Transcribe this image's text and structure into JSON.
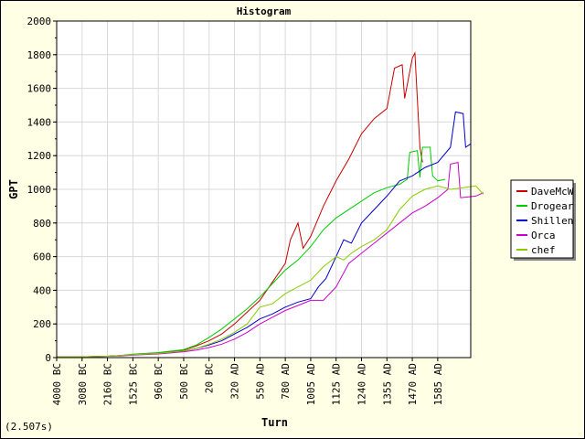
{
  "chart_data": {
    "type": "line",
    "title": "Histogram",
    "xlabel": "Turn",
    "ylabel": "GPT",
    "ylim": [
      0,
      2000
    ],
    "yticks": [
      "0",
      "200",
      "400",
      "600",
      "800",
      "1000",
      "1200",
      "1400",
      "1600",
      "1800",
      "2000"
    ],
    "xticks": [
      "4000 BC",
      "3080 BC",
      "2160 BC",
      "1525 BC",
      "960 BC",
      "500 BC",
      "20 BC",
      "320 AD",
      "550 AD",
      "780 AD",
      "1005 AD",
      "1125 AD",
      "1240 AD",
      "1355 AD",
      "1470 AD",
      "1585 AD"
    ],
    "grid": true,
    "legend_position": "right",
    "series": [
      {
        "name": "DaveMcW",
        "color": "#cc0000",
        "points": [
          [
            0,
            5
          ],
          [
            1,
            5
          ],
          [
            2,
            8
          ],
          [
            2.5,
            12
          ],
          [
            3,
            18
          ],
          [
            4,
            28
          ],
          [
            5,
            45
          ],
          [
            5.5,
            70
          ],
          [
            6,
            100
          ],
          [
            6.5,
            140
          ],
          [
            7,
            200
          ],
          [
            7.5,
            270
          ],
          [
            8,
            340
          ],
          [
            8.5,
            450
          ],
          [
            9,
            560
          ],
          [
            9.2,
            700
          ],
          [
            9.5,
            800
          ],
          [
            9.7,
            650
          ],
          [
            10,
            720
          ],
          [
            10.5,
            900
          ],
          [
            11,
            1050
          ],
          [
            11.5,
            1180
          ],
          [
            12,
            1330
          ],
          [
            12.5,
            1420
          ],
          [
            13,
            1480
          ],
          [
            13.3,
            1720
          ],
          [
            13.6,
            1740
          ],
          [
            13.7,
            1540
          ],
          [
            14,
            1780
          ],
          [
            14.1,
            1810
          ],
          [
            14.3,
            1250
          ],
          [
            14.4,
            1160
          ]
        ]
      },
      {
        "name": "Drogear",
        "color": "#00cc00",
        "points": [
          [
            0,
            5
          ],
          [
            1,
            5
          ],
          [
            2,
            8
          ],
          [
            2.5,
            12
          ],
          [
            3,
            20
          ],
          [
            4,
            30
          ],
          [
            5,
            48
          ],
          [
            5.5,
            75
          ],
          [
            6,
            120
          ],
          [
            6.5,
            170
          ],
          [
            7,
            230
          ],
          [
            7.5,
            290
          ],
          [
            8,
            360
          ],
          [
            8.5,
            440
          ],
          [
            9,
            520
          ],
          [
            9.5,
            580
          ],
          [
            10,
            660
          ],
          [
            10.5,
            760
          ],
          [
            11,
            830
          ],
          [
            11.5,
            880
          ],
          [
            12,
            930
          ],
          [
            12.5,
            980
          ],
          [
            13,
            1010
          ],
          [
            13.5,
            1030
          ],
          [
            13.8,
            1060
          ],
          [
            13.9,
            1220
          ],
          [
            14.2,
            1230
          ],
          [
            14.3,
            1070
          ],
          [
            14.4,
            1250
          ],
          [
            14.7,
            1250
          ],
          [
            14.8,
            1080
          ],
          [
            15,
            1050
          ],
          [
            15.3,
            1060
          ]
        ]
      },
      {
        "name": "Shillen",
        "color": "#0000cc",
        "points": [
          [
            0,
            5
          ],
          [
            1,
            5
          ],
          [
            2,
            8
          ],
          [
            2.5,
            12
          ],
          [
            3,
            18
          ],
          [
            4,
            25
          ],
          [
            5,
            40
          ],
          [
            5.5,
            55
          ],
          [
            6,
            75
          ],
          [
            6.5,
            100
          ],
          [
            7,
            140
          ],
          [
            7.5,
            180
          ],
          [
            8,
            230
          ],
          [
            8.5,
            260
          ],
          [
            9,
            300
          ],
          [
            9.5,
            330
          ],
          [
            10,
            350
          ],
          [
            10.3,
            420
          ],
          [
            10.6,
            470
          ],
          [
            11,
            600
          ],
          [
            11.3,
            700
          ],
          [
            11.6,
            680
          ],
          [
            12,
            800
          ],
          [
            12.5,
            880
          ],
          [
            13,
            960
          ],
          [
            13.5,
            1050
          ],
          [
            14,
            1080
          ],
          [
            14.5,
            1130
          ],
          [
            15,
            1160
          ],
          [
            15.5,
            1250
          ],
          [
            15.7,
            1460
          ],
          [
            16,
            1450
          ],
          [
            16.1,
            1250
          ],
          [
            16.3,
            1270
          ]
        ]
      },
      {
        "name": "Orca",
        "color": "#cc00cc",
        "points": [
          [
            0,
            5
          ],
          [
            1,
            5
          ],
          [
            2,
            8
          ],
          [
            2.5,
            10
          ],
          [
            3,
            15
          ],
          [
            4,
            22
          ],
          [
            5,
            35
          ],
          [
            5.5,
            45
          ],
          [
            6,
            60
          ],
          [
            6.5,
            80
          ],
          [
            7,
            110
          ],
          [
            7.5,
            150
          ],
          [
            8,
            200
          ],
          [
            8.5,
            240
          ],
          [
            9,
            280
          ],
          [
            9.5,
            310
          ],
          [
            10,
            340
          ],
          [
            10.5,
            340
          ],
          [
            11,
            420
          ],
          [
            11.5,
            560
          ],
          [
            12,
            620
          ],
          [
            12.5,
            680
          ],
          [
            13,
            740
          ],
          [
            13.5,
            800
          ],
          [
            14,
            860
          ],
          [
            14.5,
            900
          ],
          [
            15,
            950
          ],
          [
            15.4,
            1000
          ],
          [
            15.5,
            1150
          ],
          [
            15.8,
            1160
          ],
          [
            15.9,
            950
          ],
          [
            16.5,
            960
          ],
          [
            16.8,
            980
          ]
        ]
      },
      {
        "name": "chef",
        "color": "#88cc00",
        "points": [
          [
            0,
            5
          ],
          [
            1,
            5
          ],
          [
            2,
            8
          ],
          [
            2.5,
            12
          ],
          [
            3,
            18
          ],
          [
            4,
            25
          ],
          [
            5,
            40
          ],
          [
            5.5,
            55
          ],
          [
            6,
            80
          ],
          [
            6.5,
            110
          ],
          [
            7,
            150
          ],
          [
            7.5,
            200
          ],
          [
            8,
            300
          ],
          [
            8.5,
            320
          ],
          [
            9,
            380
          ],
          [
            9.5,
            420
          ],
          [
            10,
            460
          ],
          [
            10.5,
            540
          ],
          [
            11,
            600
          ],
          [
            11.3,
            580
          ],
          [
            11.6,
            620
          ],
          [
            12,
            660
          ],
          [
            12.5,
            700
          ],
          [
            13,
            760
          ],
          [
            13.5,
            880
          ],
          [
            14,
            960
          ],
          [
            14.5,
            1000
          ],
          [
            15,
            1020
          ],
          [
            15.5,
            1000
          ],
          [
            16,
            1010
          ],
          [
            16.5,
            1020
          ],
          [
            16.8,
            970
          ]
        ]
      }
    ]
  },
  "footer": {
    "timing": "(2.507s)"
  }
}
